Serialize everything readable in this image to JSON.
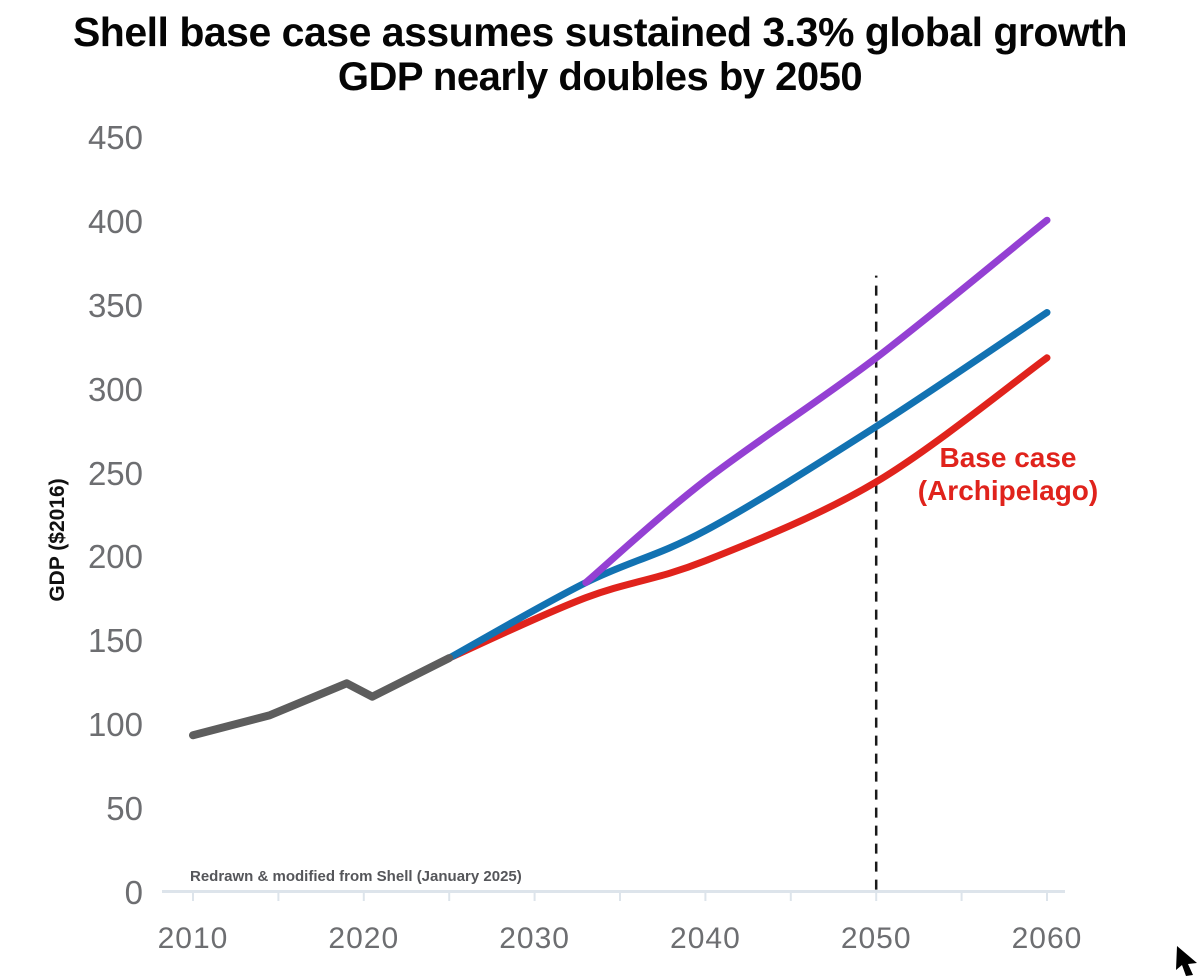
{
  "title": {
    "line1": "Shell base case assumes sustained 3.3% global growth",
    "line2": "GDP nearly doubles by 2050"
  },
  "caption": "Redrawn & modified from Shell (January 2025)",
  "annotation": {
    "line1": "Base case",
    "line2": "(Archipelago)",
    "color": "#e0231c"
  },
  "colors": {
    "historical": "#5d5d5d",
    "scenario_high": "#9440d3",
    "scenario_mid": "#1272b2",
    "base_case": "#e0231c",
    "axis_line": "#dde4eb",
    "tick_label": "#6d6e71",
    "reference_line": "#1a1a1a"
  },
  "chart_data": {
    "type": "line",
    "title": "Shell base case assumes sustained 3.3% global growth — GDP nearly doubles by 2050",
    "xlabel": "",
    "ylabel": "GDP ($2016)",
    "xlim": [
      2010,
      2060
    ],
    "ylim": [
      0,
      450
    ],
    "grid": false,
    "legend_position": "none",
    "x_tick_labels": [
      2010,
      2020,
      2030,
      2040,
      2050,
      2060
    ],
    "x_tick_marks": [
      2010,
      2015,
      2020,
      2025,
      2030,
      2035,
      2040,
      2045,
      2050,
      2055,
      2060
    ],
    "y_tick_labels": [
      450,
      400,
      350,
      300,
      250,
      200,
      150,
      100,
      50,
      0
    ],
    "series": [
      {
        "id": "base-case-archipelago",
        "label": "Base case (Archipelago)",
        "color": "#e0231c",
        "width": 7,
        "smooth": true,
        "points": [
          [
            2025,
            140
          ],
          [
            2033,
            176
          ],
          [
            2040,
            198
          ],
          [
            2050,
            245
          ],
          [
            2060,
            319
          ]
        ]
      },
      {
        "id": "scenario-mid",
        "label": "",
        "color": "#1272b2",
        "width": 7,
        "smooth": true,
        "points": [
          [
            2025,
            140
          ],
          [
            2033,
            185
          ],
          [
            2040,
            216
          ],
          [
            2050,
            278
          ],
          [
            2060,
            346
          ]
        ]
      },
      {
        "id": "scenario-high",
        "label": "",
        "color": "#9440d3",
        "width": 7,
        "smooth": true,
        "points": [
          [
            2033,
            185
          ],
          [
            2040,
            246
          ],
          [
            2050,
            319
          ],
          [
            2060,
            401
          ]
        ]
      },
      {
        "id": "historical",
        "label": "",
        "color": "#5d5d5d",
        "width": 8,
        "smooth": false,
        "points": [
          [
            2010,
            94
          ],
          [
            2014.5,
            106
          ],
          [
            2019,
            125
          ],
          [
            2020.5,
            117
          ],
          [
            2025,
            140
          ]
        ]
      }
    ],
    "reference_line": {
      "x": 2050,
      "from_value": 2,
      "to_value": 368,
      "style": "dashed",
      "color": "#1a1a1a"
    }
  }
}
